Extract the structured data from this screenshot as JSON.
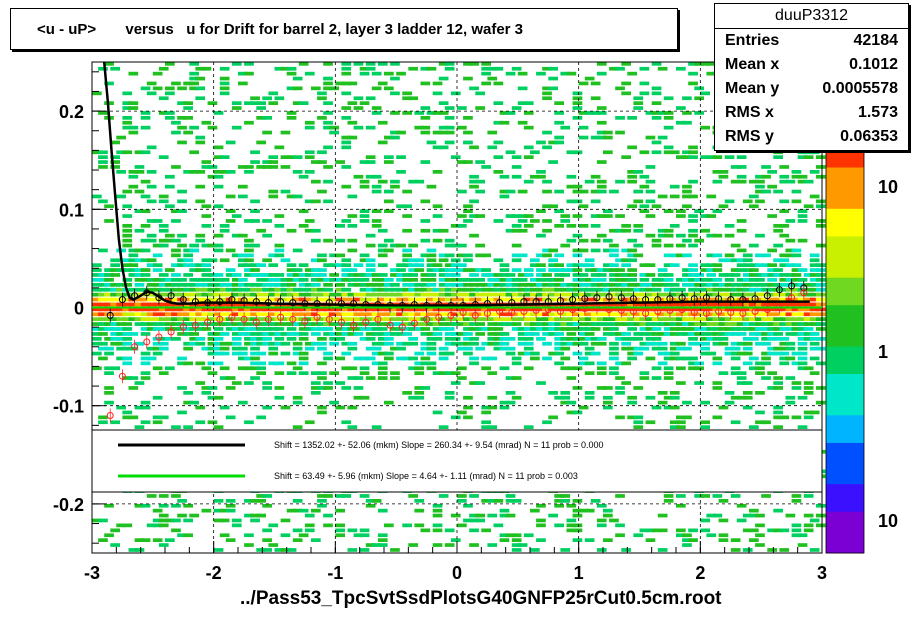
{
  "window": {
    "title": "<u - uP>       versus   u for Drift for barrel 2, layer 3 ladder 12, wafer 3"
  },
  "stats": {
    "name": "duuP3312",
    "rows": [
      {
        "label": "Entries",
        "value": "42184"
      },
      {
        "label": "Mean x",
        "value": "0.1012"
      },
      {
        "label": "Mean y",
        "value": "0.0005578"
      },
      {
        "label": "RMS x",
        "value": "1.573"
      },
      {
        "label": "RMS y",
        "value": "0.06353"
      }
    ]
  },
  "footer": {
    "filename": "../Pass53_TpcSvtSsdPlotsG40GNFP25rCut0.5cm.root"
  },
  "legend": [
    {
      "color": "#000000",
      "text": "Shift =   1352.02 +- 52.06 (mkm) Slope =    260.34 +- 9.54 (mrad)  N = 11 prob = 0.000"
    },
    {
      "color": "#00dd00",
      "text": "Shift =    63.49 +- 5.96 (mkm) Slope =     4.64 +- 1.11 (mrad)  N = 11 prob = 0.003"
    }
  ],
  "chart_data": {
    "type": "heatmap",
    "title": "<u - uP>       versus   u for Drift for barrel 2, layer 3 ladder 12, wafer 3",
    "xlim": [
      -3,
      3
    ],
    "ylim": [
      -0.25,
      0.25
    ],
    "x_ticks": [
      "-3",
      "-2",
      "-1",
      "0",
      "1",
      "2",
      "3"
    ],
    "x_tick_values": [
      -3,
      -2,
      -1,
      0,
      1,
      2,
      3
    ],
    "y_ticks": [
      "0.2",
      "0.1",
      "0",
      "-0.1",
      "-0.2"
    ],
    "y_tick_values": [
      0.2,
      0.1,
      0,
      -0.1,
      -0.2
    ],
    "grid": true,
    "colorbar": {
      "scale": "log",
      "labels": [
        "10",
        "1",
        "10"
      ],
      "colors": [
        "#7a00d4",
        "#3a10ff",
        "#0050ff",
        "#00b4ff",
        "#00e6c8",
        "#00d060",
        "#20c020",
        "#70d820",
        "#c8f000",
        "#ffff00",
        "#ff9900",
        "#ff3300"
      ]
    },
    "series": [
      {
        "name": "mean profile (black markers)",
        "x": [
          -2.85,
          -2.75,
          -2.65,
          -2.55,
          -2.45,
          -2.35,
          -2.25,
          -2.15,
          -2.05,
          -1.95,
          -1.85,
          -1.75,
          -1.65,
          -1.55,
          -1.45,
          -1.35,
          -1.25,
          -1.15,
          -1.05,
          -0.95,
          -0.85,
          -0.75,
          -0.65,
          -0.55,
          -0.45,
          -0.35,
          -0.25,
          -0.15,
          -0.05,
          0.05,
          0.15,
          0.25,
          0.35,
          0.45,
          0.55,
          0.65,
          0.75,
          0.85,
          0.95,
          1.05,
          1.15,
          1.25,
          1.35,
          1.45,
          1.55,
          1.65,
          1.75,
          1.85,
          1.95,
          2.05,
          2.15,
          2.25,
          2.35,
          2.45,
          2.55,
          2.65,
          2.75,
          2.85
        ],
        "y": [
          -0.008,
          0.008,
          0.012,
          0.015,
          0.01,
          0.012,
          0.008,
          0.006,
          0.005,
          0.006,
          0.008,
          0.007,
          0.006,
          0.005,
          0.006,
          0.005,
          0.004,
          0.004,
          0.005,
          0.004,
          0.004,
          0.003,
          0.003,
          0.002,
          0.002,
          0.003,
          0.002,
          0.003,
          0.002,
          0.002,
          0.003,
          0.004,
          0.005,
          0.005,
          0.006,
          0.006,
          0.006,
          0.007,
          0.008,
          0.009,
          0.01,
          0.011,
          0.01,
          0.009,
          0.008,
          0.008,
          0.009,
          0.01,
          0.009,
          0.01,
          0.009,
          0.008,
          0.008,
          0.009,
          0.012,
          0.018,
          0.022,
          0.02
        ]
      },
      {
        "name": "profile (red markers)",
        "x": [
          -2.85,
          -2.75,
          -2.65,
          -2.55,
          -2.45,
          -2.35,
          -2.25,
          -2.15,
          -2.05,
          -1.95,
          -1.85,
          -1.75,
          -1.65,
          -1.55,
          -1.45,
          -1.35,
          -1.25,
          -1.15,
          -1.05,
          -0.95,
          -0.85,
          -0.75,
          -0.65,
          -0.55,
          -0.45,
          -0.35,
          -0.25,
          -0.15,
          -0.05,
          0.05,
          0.15,
          0.25,
          0.35,
          0.45,
          0.55,
          0.65,
          0.75,
          0.85,
          0.95,
          1.05,
          1.15,
          1.25,
          1.35,
          1.45,
          1.55,
          1.65,
          1.75,
          1.85,
          1.95,
          2.05,
          2.15,
          2.25,
          2.35,
          2.45,
          2.55,
          2.65,
          2.75,
          2.85
        ],
        "y": [
          -0.11,
          -0.07,
          -0.04,
          -0.035,
          -0.03,
          -0.025,
          -0.02,
          -0.018,
          -0.015,
          -0.012,
          -0.01,
          -0.012,
          -0.015,
          -0.012,
          -0.01,
          -0.012,
          -0.014,
          -0.01,
          -0.012,
          -0.015,
          -0.018,
          -0.015,
          -0.012,
          -0.018,
          -0.02,
          -0.016,
          -0.012,
          -0.01,
          -0.008,
          -0.005,
          -0.008,
          -0.006,
          -0.004,
          -0.005,
          -0.004,
          -0.003,
          -0.002,
          -0.004,
          -0.002,
          -0.001,
          0.0,
          -0.002,
          -0.003,
          -0.004,
          -0.006,
          -0.004,
          -0.003,
          -0.002,
          -0.005,
          -0.006,
          -0.004,
          -0.005,
          -0.006,
          -0.004,
          -0.002,
          0.0,
          0.01,
          0.015
        ]
      },
      {
        "name": "fit (black line)",
        "style": "line",
        "x": [
          -2.9,
          -2.87,
          -2.84,
          -2.81,
          -2.78,
          -2.75,
          -2.72,
          -2.69,
          -2.66,
          -2.6,
          -2.55,
          -2.5,
          -2.45,
          -2.4,
          -2.35,
          -2.3,
          -2.2,
          -2.1,
          -2.0,
          -1.8,
          -1.5,
          -1.0,
          -0.5,
          0.0,
          0.5,
          1.0,
          1.5,
          2.0,
          2.5,
          2.9
        ],
        "y": [
          0.25,
          0.21,
          0.16,
          0.115,
          0.07,
          0.04,
          0.02,
          0.01,
          0.008,
          0.012,
          0.016,
          0.015,
          0.011,
          0.007,
          0.005,
          0.004,
          0.004,
          0.005,
          0.005,
          0.005,
          0.004,
          0.003,
          0.002,
          0.002,
          0.003,
          0.004,
          0.005,
          0.006,
          0.006,
          0.006
        ]
      },
      {
        "name": "fit (green line)",
        "style": "line",
        "x": [
          -3,
          3
        ],
        "y": [
          0.0,
          0.0
        ]
      }
    ]
  }
}
